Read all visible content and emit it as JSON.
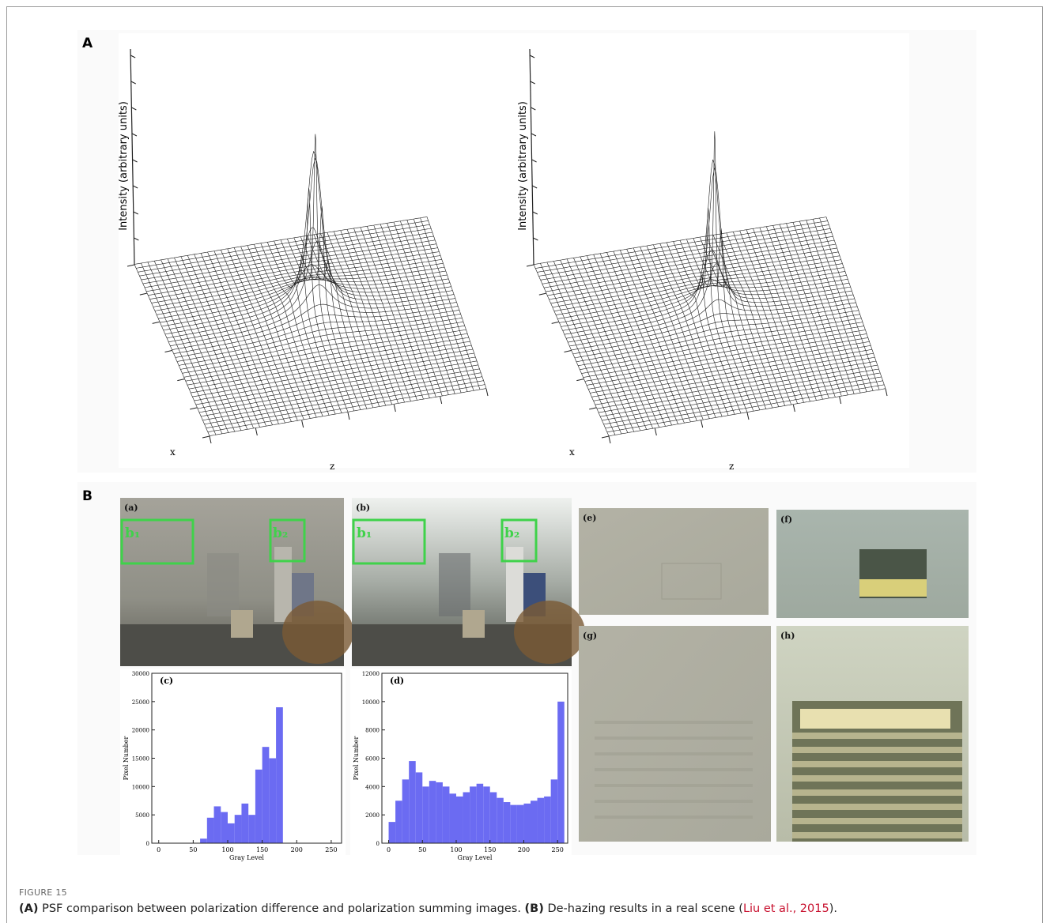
{
  "figure": {
    "panel_a": {
      "label": "A",
      "plots": [
        {
          "ylabel": "Intensity (arbitrary units)",
          "xlabel": "x",
          "zlabel": "z"
        },
        {
          "ylabel": "Intensity (arbitrary units)",
          "xlabel": "x",
          "zlabel": "z"
        }
      ]
    },
    "panel_b": {
      "label": "B",
      "photos": [
        {
          "label": "(a)",
          "boxes": [
            "b₁",
            "b₂"
          ]
        },
        {
          "label": "(b)",
          "boxes": [
            "b₁",
            "b₂"
          ]
        },
        {
          "label": "(e)"
        },
        {
          "label": "(f)"
        },
        {
          "label": "(g)"
        },
        {
          "label": "(h)"
        }
      ]
    }
  },
  "chart_data": [
    {
      "type": "histogram",
      "label": "(c)",
      "xlabel": "Gray Level",
      "ylabel": "Pixel Number",
      "color": "#6b6bf2",
      "bins": [
        0,
        10,
        20,
        30,
        40,
        50,
        60,
        70,
        80,
        90,
        100,
        110,
        120,
        130,
        140,
        150,
        160,
        170,
        180,
        190,
        200,
        210,
        220,
        230,
        240,
        250,
        260
      ],
      "values": [
        0,
        0,
        0,
        0,
        0,
        0,
        800,
        4500,
        6500,
        5500,
        3500,
        5000,
        7000,
        5000,
        13000,
        17000,
        15000,
        24000,
        0,
        0,
        0,
        0,
        0,
        0,
        0,
        0
      ],
      "xlim": [
        -10,
        265
      ],
      "ylim": [
        0,
        30000
      ],
      "xticks": [
        0,
        50,
        100,
        150,
        200,
        250
      ],
      "yticks": [
        0,
        5000,
        10000,
        15000,
        20000,
        25000,
        30000
      ]
    },
    {
      "type": "histogram",
      "label": "(d)",
      "xlabel": "Gray Level",
      "ylabel": "Pixel Number",
      "color": "#6b6bf2",
      "bins": [
        0,
        10,
        20,
        30,
        40,
        50,
        60,
        70,
        80,
        90,
        100,
        110,
        120,
        130,
        140,
        150,
        160,
        170,
        180,
        190,
        200,
        210,
        220,
        230,
        240,
        250,
        260
      ],
      "values": [
        1500,
        3000,
        4500,
        5800,
        5000,
        4000,
        4400,
        4300,
        4000,
        3500,
        3300,
        3600,
        4000,
        4200,
        4000,
        3600,
        3200,
        2900,
        2700,
        2700,
        2800,
        3000,
        3200,
        3300,
        4500,
        10000
      ],
      "xlim": [
        -10,
        265
      ],
      "ylim": [
        0,
        12000
      ],
      "xticks": [
        0,
        50,
        100,
        150,
        200,
        250
      ],
      "yticks": [
        0,
        2000,
        4000,
        6000,
        8000,
        10000,
        12000
      ]
    }
  ],
  "caption": {
    "figure_number": "FIGURE 15",
    "parts": [
      {
        "text": "(A)",
        "style": "bold"
      },
      {
        "text": " PSF comparison between polarization difference and polarization summing images. ",
        "style": "normal"
      },
      {
        "text": "(B)",
        "style": "bold"
      },
      {
        "text": " De-hazing results in a real scene (",
        "style": "normal"
      },
      {
        "text": "Liu et al., 2015",
        "style": "link"
      },
      {
        "text": ").",
        "style": "normal"
      }
    ]
  }
}
